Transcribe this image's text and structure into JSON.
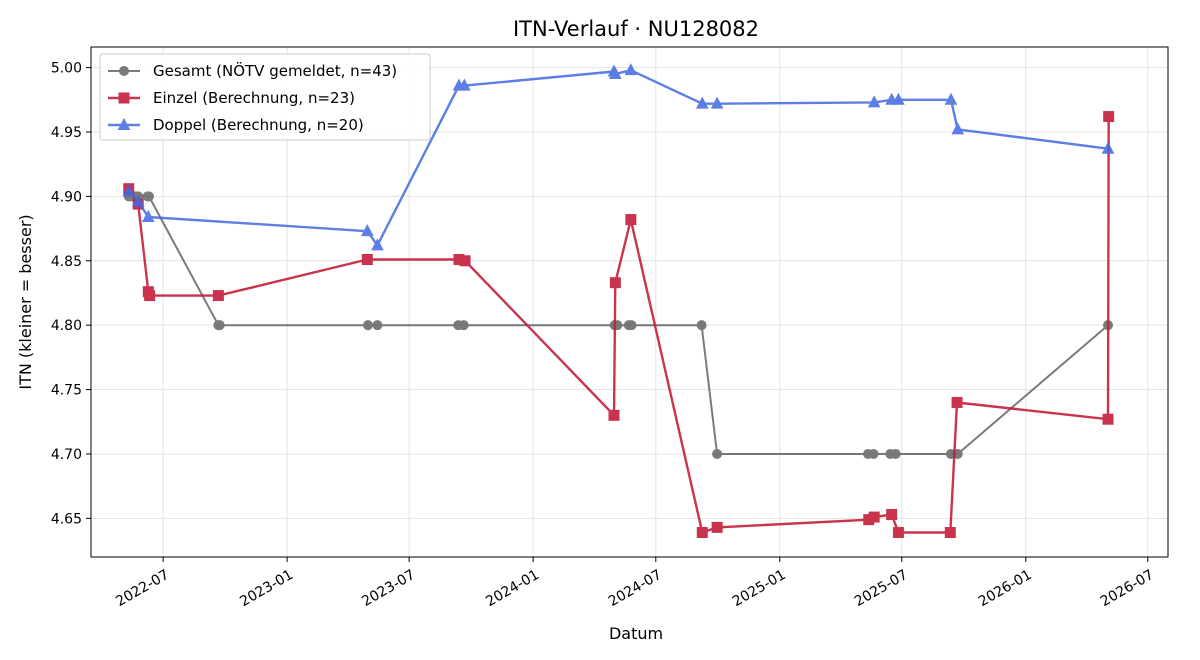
{
  "chart_data": {
    "type": "line",
    "title": "ITN-Verlauf · NU128082",
    "xlabel": "Datum",
    "ylabel": "ITN  (kleiner = besser)",
    "xlim": [
      "2022-03-16",
      "2026-07-31"
    ],
    "ylim": [
      4.62,
      5.016
    ],
    "x_ticks": [
      "2022-07",
      "2023-01",
      "2023-07",
      "2024-01",
      "2024-07",
      "2025-01",
      "2025-07",
      "2026-01",
      "2026-07"
    ],
    "y_ticks": [
      4.65,
      4.7,
      4.75,
      4.8,
      4.85,
      4.9,
      4.95,
      5.0
    ],
    "y_tick_labels": [
      "4.65",
      "4.70",
      "4.75",
      "4.80",
      "4.85",
      "4.90",
      "4.95",
      "5.00"
    ],
    "grid": true,
    "legend_position": "upper-left",
    "series": [
      {
        "name": "Gesamt (NÖTV gemeldet, n=43)",
        "color": "#555555",
        "marker": "circle",
        "points": [
          [
            "2022-05-11",
            4.9
          ],
          [
            "2022-05-15",
            4.9
          ],
          [
            "2022-05-21",
            4.9
          ],
          [
            "2022-05-25",
            4.9
          ],
          [
            "2022-06-08",
            4.9
          ],
          [
            "2022-06-10",
            4.9
          ],
          [
            "2022-09-21",
            4.8
          ],
          [
            "2022-09-23",
            4.8
          ],
          [
            "2023-05-01",
            4.8
          ],
          [
            "2023-05-15",
            4.8
          ],
          [
            "2023-09-12",
            4.8
          ],
          [
            "2023-09-20",
            4.8
          ],
          [
            "2024-05-01",
            4.8
          ],
          [
            "2024-05-05",
            4.8
          ],
          [
            "2024-05-22",
            4.8
          ],
          [
            "2024-05-26",
            4.8
          ],
          [
            "2024-09-07",
            4.8
          ],
          [
            "2024-09-30",
            4.7
          ],
          [
            "2025-05-12",
            4.7
          ],
          [
            "2025-05-20",
            4.7
          ],
          [
            "2025-06-14",
            4.7
          ],
          [
            "2025-06-22",
            4.7
          ],
          [
            "2025-09-12",
            4.7
          ],
          [
            "2025-09-22",
            4.7
          ],
          [
            "2026-05-03",
            4.8
          ]
        ]
      },
      {
        "name": "Einzel (Berechnung, n=23)",
        "color": "#c41e3a",
        "marker": "square",
        "points": [
          [
            "2022-05-11",
            4.906
          ],
          [
            "2022-05-25",
            4.894
          ],
          [
            "2022-06-09",
            4.826
          ],
          [
            "2022-06-11",
            4.823
          ],
          [
            "2022-09-21",
            4.823
          ],
          [
            "2023-04-30",
            4.851
          ],
          [
            "2023-09-13",
            4.851
          ],
          [
            "2023-09-22",
            4.85
          ],
          [
            "2024-04-30",
            4.73
          ],
          [
            "2024-05-02",
            4.833
          ],
          [
            "2024-05-25",
            4.882
          ],
          [
            "2024-09-08",
            4.639
          ],
          [
            "2024-09-30",
            4.643
          ],
          [
            "2025-05-13",
            4.649
          ],
          [
            "2025-05-21",
            4.651
          ],
          [
            "2025-06-16",
            4.653
          ],
          [
            "2025-06-26",
            4.639
          ],
          [
            "2025-09-11",
            4.639
          ],
          [
            "2025-09-21",
            4.74
          ],
          [
            "2026-05-03",
            4.727
          ],
          [
            "2026-05-04",
            4.962
          ]
        ]
      },
      {
        "name": "Doppel (Berechnung, n=20)",
        "color": "#4169e1",
        "marker": "triangle",
        "points": [
          [
            "2022-05-11",
            4.904
          ],
          [
            "2022-05-25",
            4.896
          ],
          [
            "2022-06-09",
            4.884
          ],
          [
            "2023-04-30",
            4.873
          ],
          [
            "2023-05-15",
            4.862
          ],
          [
            "2023-09-13",
            4.986
          ],
          [
            "2023-09-21",
            4.986
          ],
          [
            "2024-04-30",
            4.997
          ],
          [
            "2024-05-02",
            4.995
          ],
          [
            "2024-05-25",
            4.998
          ],
          [
            "2024-09-08",
            4.972
          ],
          [
            "2024-09-30",
            4.972
          ],
          [
            "2025-05-21",
            4.973
          ],
          [
            "2025-06-16",
            4.975
          ],
          [
            "2025-06-26",
            4.975
          ],
          [
            "2025-09-12",
            4.975
          ],
          [
            "2025-09-22",
            4.952
          ],
          [
            "2026-05-03",
            4.937
          ]
        ]
      }
    ]
  }
}
